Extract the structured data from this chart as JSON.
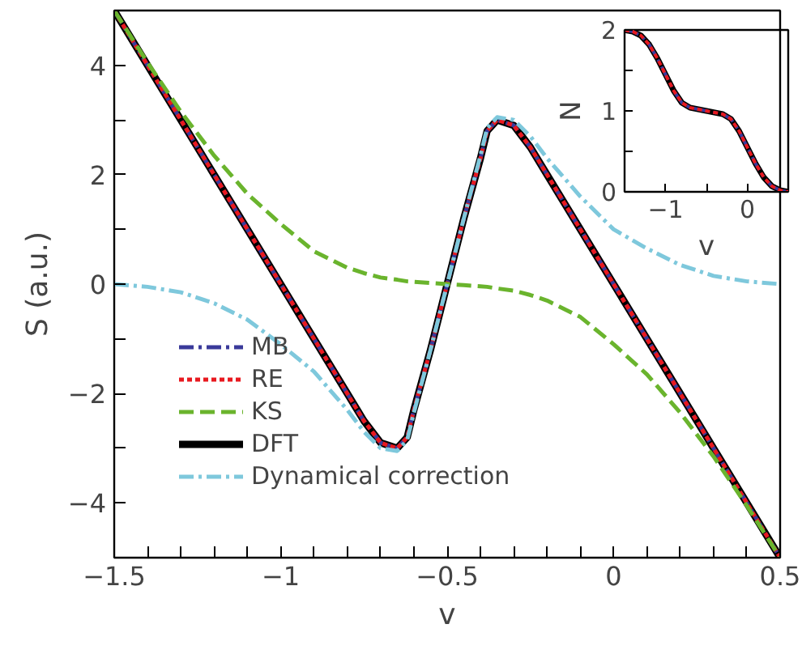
{
  "chart_data": [
    {
      "type": "line",
      "xlabel": "v",
      "ylabel": "S (a.u.)",
      "xlim": [
        -1.5,
        0.5
      ],
      "ylim": [
        -5,
        5
      ],
      "xticks": [
        {
          "value": -1.5,
          "label": "−1.5"
        },
        {
          "value": -1.4,
          "label": null
        },
        {
          "value": -1.3,
          "label": null
        },
        {
          "value": -1.2,
          "label": null
        },
        {
          "value": -1.1,
          "label": null
        },
        {
          "value": -1,
          "label": "−1"
        },
        {
          "value": -0.9,
          "label": null
        },
        {
          "value": -0.8,
          "label": null
        },
        {
          "value": -0.7,
          "label": null
        },
        {
          "value": -0.6,
          "label": null
        },
        {
          "value": -0.5,
          "label": "−0.5"
        },
        {
          "value": -0.4,
          "label": null
        },
        {
          "value": -0.3,
          "label": null
        },
        {
          "value": -0.2,
          "label": null
        },
        {
          "value": -0.1,
          "label": null
        },
        0,
        {
          "value": 0.1,
          "label": null
        },
        {
          "value": 0.2,
          "label": null
        },
        {
          "value": 0.3,
          "label": null
        },
        {
          "value": 0.4,
          "label": null
        },
        0.5
      ],
      "yticks": [
        {
          "value": -5,
          "label": null
        },
        {
          "value": -4,
          "label": "−4"
        },
        {
          "value": -3,
          "label": null
        },
        {
          "value": -2,
          "label": "−2"
        },
        {
          "value": -1,
          "label": null
        },
        0,
        {
          "value": 1,
          "label": null
        },
        2,
        {
          "value": 3,
          "label": null
        },
        4,
        {
          "value": 5,
          "label": null
        }
      ],
      "grid": false,
      "legend": "bottom left",
      "x": [
        -1.5,
        -1.4,
        -1.3,
        -1.2,
        -1.1,
        -1.0,
        -0.9,
        -0.8,
        -0.75,
        -0.7,
        -0.65,
        -0.62,
        -0.6,
        -0.55,
        -0.5,
        -0.45,
        -0.4,
        -0.38,
        -0.35,
        -0.3,
        -0.25,
        -0.2,
        -0.1,
        0,
        0.1,
        0.2,
        0.3,
        0.4,
        0.5
      ],
      "series": [
        {
          "name": "MB",
          "color": "#3a3a9a",
          "line_style": "dashdot",
          "values": [
            5,
            4,
            3,
            2,
            1,
            0,
            -1,
            -2,
            -2.5,
            -2.9,
            -3,
            -2.8,
            -2.3,
            -1.2,
            0,
            1.2,
            2.3,
            2.8,
            3,
            2.9,
            2.5,
            2,
            1,
            0,
            -1,
            -2,
            -3,
            -4,
            -5
          ]
        },
        {
          "name": "RE",
          "color": "#e8191f",
          "line_style": "dotted",
          "values": [
            5,
            4,
            3,
            2,
            1,
            0,
            -1,
            -2,
            -2.5,
            -2.9,
            -3,
            -2.8,
            -2.3,
            -1.2,
            0,
            1.2,
            2.3,
            2.8,
            3,
            2.9,
            2.5,
            2,
            1,
            0,
            -1,
            -2,
            -3,
            -4,
            -5
          ]
        },
        {
          "name": "KS",
          "color": "#6ab42d",
          "line_style": "dashed",
          "values": [
            5,
            4.05,
            3.15,
            2.35,
            1.65,
            1.1,
            0.6,
            0.3,
            0.2,
            0.12,
            0.08,
            0.05,
            0.04,
            0.02,
            0,
            -0.02,
            -0.04,
            -0.05,
            -0.08,
            -0.12,
            -0.2,
            -0.3,
            -0.6,
            -1.1,
            -1.65,
            -2.35,
            -3.15,
            -4.05,
            -5
          ]
        },
        {
          "name": "DFT",
          "color": "#000000",
          "line_style": "solid",
          "values": [
            5,
            4,
            3,
            2,
            1,
            0,
            -1,
            -2,
            -2.5,
            -2.9,
            -3,
            -2.8,
            -2.3,
            -1.2,
            0,
            1.2,
            2.3,
            2.8,
            3,
            2.9,
            2.5,
            2,
            1,
            0,
            -1,
            -2,
            -3,
            -4,
            -5
          ]
        },
        {
          "name": "Dynamical correction",
          "color": "#7ec8dc",
          "line_style": "dashdot",
          "values": [
            0,
            -0.05,
            -0.15,
            -0.35,
            -0.65,
            -1.1,
            -1.6,
            -2.3,
            -2.7,
            -3.0,
            -3.05,
            -2.85,
            -2.35,
            -1.2,
            0,
            1.2,
            2.35,
            2.85,
            3.05,
            3.0,
            2.7,
            2.3,
            1.6,
            1.0,
            0.65,
            0.35,
            0.15,
            0.05,
            0
          ]
        }
      ]
    },
    {
      "type": "line",
      "xlabel": "v",
      "ylabel": "N",
      "xlim": [
        -1.5,
        0.5
      ],
      "ylim": [
        0,
        2
      ],
      "xticks": [
        {
          "value": -1,
          "label": "−1"
        },
        {
          "value": -0.5,
          "label": null
        },
        0
      ],
      "yticks": [
        0,
        {
          "value": 0.5,
          "label": null
        },
        1,
        {
          "value": 1.5,
          "label": null
        },
        2
      ],
      "grid": false,
      "legend": false,
      "x": [
        -1.5,
        -1.4,
        -1.3,
        -1.2,
        -1.1,
        -1.0,
        -0.9,
        -0.8,
        -0.7,
        -0.6,
        -0.5,
        -0.4,
        -0.3,
        -0.2,
        -0.1,
        0,
        0.1,
        0.2,
        0.3,
        0.4,
        0.5
      ],
      "series": [
        {
          "color": "#000000",
          "line_style": "solid",
          "values": [
            2,
            1.98,
            1.93,
            1.82,
            1.65,
            1.45,
            1.25,
            1.1,
            1.04,
            1.02,
            1.0,
            0.98,
            0.96,
            0.9,
            0.75,
            0.55,
            0.35,
            0.18,
            0.07,
            0.02,
            0
          ]
        },
        {
          "color": "#3a3a9a",
          "line_style": "dashdot",
          "values": [
            2,
            1.98,
            1.93,
            1.82,
            1.65,
            1.45,
            1.25,
            1.1,
            1.04,
            1.02,
            1.0,
            0.98,
            0.96,
            0.9,
            0.75,
            0.55,
            0.35,
            0.18,
            0.07,
            0.02,
            0
          ]
        },
        {
          "color": "#e8191f",
          "line_style": "dotted",
          "values": [
            2,
            1.98,
            1.93,
            1.82,
            1.65,
            1.45,
            1.25,
            1.1,
            1.04,
            1.02,
            1.0,
            0.98,
            0.96,
            0.9,
            0.75,
            0.55,
            0.35,
            0.18,
            0.07,
            0.02,
            0
          ]
        }
      ]
    }
  ]
}
